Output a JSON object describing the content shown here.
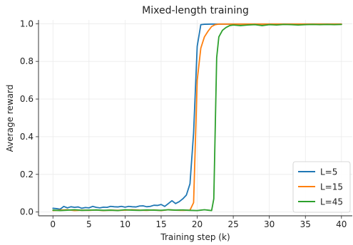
{
  "chart_data": {
    "type": "line",
    "title": "Mixed-length training",
    "xlabel": "Training step (k)",
    "ylabel": "Average reward",
    "xlim": [
      -2,
      41.5
    ],
    "ylim": [
      -0.02,
      1.02
    ],
    "xticks": [
      0,
      5,
      10,
      15,
      20,
      25,
      30,
      35,
      40
    ],
    "xtick_labels": [
      "0",
      "5",
      "10",
      "15",
      "20",
      "25",
      "30",
      "35",
      "40"
    ],
    "yticks": [
      0.0,
      0.2,
      0.4,
      0.6,
      0.8,
      1.0
    ],
    "ytick_labels": [
      "0.0",
      "0.2",
      "0.4",
      "0.6",
      "0.8",
      "1.0"
    ],
    "grid": true,
    "legend_position": "bottom-right",
    "series": [
      {
        "name": "L=5",
        "color": "#1f77b4",
        "x": [
          0,
          0.5,
          1,
          1.5,
          2,
          2.5,
          3,
          3.5,
          4,
          4.5,
          5,
          5.5,
          6,
          6.5,
          7,
          7.5,
          8,
          8.5,
          9,
          9.5,
          10,
          10.5,
          11,
          11.5,
          12,
          12.5,
          13,
          13.5,
          14,
          14.5,
          15,
          15.5,
          16,
          16.5,
          17,
          17.5,
          18,
          18.5,
          19,
          19.5,
          20,
          20.5,
          21,
          22,
          23,
          24,
          25,
          26,
          27,
          28,
          29,
          30,
          31,
          32,
          33,
          34,
          35,
          36,
          37,
          38,
          39,
          40
        ],
        "y": [
          0.02,
          0.018,
          0.015,
          0.03,
          0.022,
          0.028,
          0.025,
          0.027,
          0.02,
          0.024,
          0.022,
          0.03,
          0.025,
          0.022,
          0.026,
          0.025,
          0.03,
          0.028,
          0.027,
          0.03,
          0.026,
          0.03,
          0.028,
          0.027,
          0.032,
          0.033,
          0.028,
          0.03,
          0.036,
          0.035,
          0.04,
          0.03,
          0.045,
          0.06,
          0.045,
          0.055,
          0.07,
          0.09,
          0.15,
          0.42,
          0.88,
          0.995,
          0.997,
          0.998,
          0.998,
          0.998,
          0.998,
          0.998,
          0.998,
          0.998,
          0.998,
          0.998,
          0.998,
          0.998,
          0.998,
          0.998,
          0.998,
          0.998,
          0.998,
          0.998,
          0.998,
          0.998
        ]
      },
      {
        "name": "L=15",
        "color": "#ff7f0e",
        "x": [
          0,
          1,
          2,
          3,
          4,
          5,
          6,
          7,
          8,
          9,
          10,
          11,
          12,
          13,
          14,
          15,
          16,
          17,
          18,
          19,
          19.5,
          20,
          20.5,
          21,
          21.5,
          22,
          22.5,
          23,
          24,
          25,
          26,
          27,
          28,
          29,
          30,
          31,
          32,
          33,
          34,
          35,
          36,
          37,
          38,
          39,
          40
        ],
        "y": [
          0.008,
          0.01,
          0.012,
          0.008,
          0.01,
          0.009,
          0.011,
          0.008,
          0.01,
          0.009,
          0.01,
          0.012,
          0.01,
          0.009,
          0.011,
          0.008,
          0.012,
          0.01,
          0.009,
          0.01,
          0.05,
          0.7,
          0.87,
          0.93,
          0.96,
          0.985,
          0.995,
          0.998,
          0.998,
          0.998,
          0.998,
          0.998,
          0.998,
          0.998,
          0.998,
          0.998,
          0.998,
          0.998,
          0.998,
          0.998,
          0.998,
          0.998,
          0.998,
          0.998,
          0.998
        ]
      },
      {
        "name": "L=45",
        "color": "#2ca02c",
        "x": [
          0,
          1,
          2,
          3,
          4,
          5,
          6,
          7,
          8,
          9,
          10,
          11,
          12,
          13,
          14,
          15,
          16,
          17,
          18,
          19,
          20,
          20.5,
          21,
          21.5,
          22,
          22.3,
          22.7,
          23,
          23.5,
          24,
          24.5,
          25,
          26,
          27,
          28,
          29,
          30,
          31,
          32,
          33,
          34,
          35,
          36,
          37,
          38,
          39,
          40
        ],
        "y": [
          0.01,
          0.008,
          0.01,
          0.012,
          0.009,
          0.01,
          0.011,
          0.009,
          0.01,
          0.008,
          0.012,
          0.01,
          0.009,
          0.011,
          0.01,
          0.009,
          0.012,
          0.01,
          0.011,
          0.009,
          0.008,
          0.01,
          0.012,
          0.01,
          0.008,
          0.07,
          0.82,
          0.93,
          0.965,
          0.98,
          0.99,
          0.993,
          0.99,
          0.993,
          0.995,
          0.99,
          0.995,
          0.993,
          0.996,
          0.995,
          0.993,
          0.995,
          0.996,
          0.995,
          0.996,
          0.995,
          0.996
        ]
      }
    ]
  }
}
